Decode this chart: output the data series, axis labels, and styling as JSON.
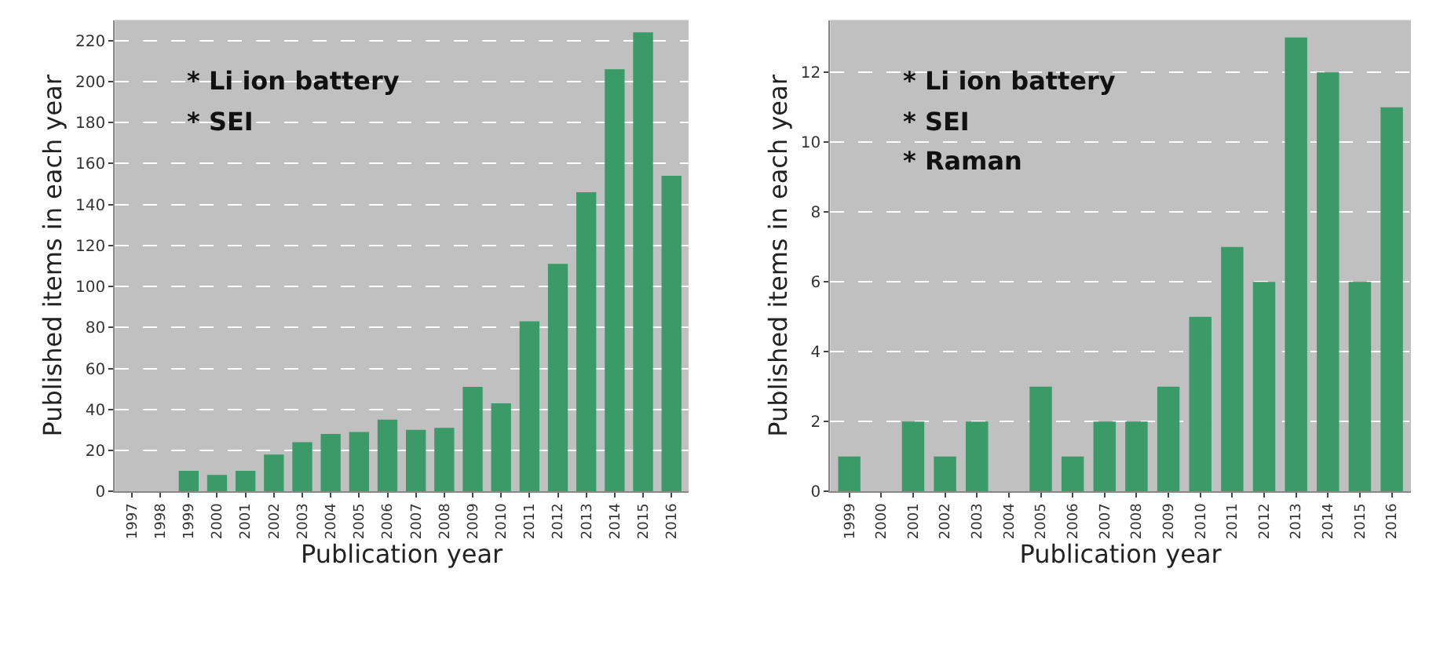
{
  "chart_data": [
    {
      "type": "bar",
      "xlabel": "Publication year",
      "ylabel": "Published items in each year",
      "categories": [
        "1997",
        "1998",
        "1999",
        "2000",
        "2001",
        "2002",
        "2003",
        "2004",
        "2005",
        "2006",
        "2007",
        "2008",
        "2009",
        "2010",
        "2011",
        "2012",
        "2013",
        "2014",
        "2015",
        "2016"
      ],
      "values": [
        0,
        0,
        10,
        8,
        10,
        18,
        24,
        28,
        29,
        35,
        30,
        31,
        51,
        43,
        83,
        111,
        146,
        206,
        224,
        154
      ],
      "color": "#3a9a68",
      "ylim": [
        0,
        230
      ],
      "yticks": [
        0,
        20,
        40,
        60,
        80,
        100,
        120,
        140,
        160,
        180,
        200,
        220
      ],
      "grid": "y",
      "annotations": [
        "* Li ion battery",
        "* SEI"
      ]
    },
    {
      "type": "bar",
      "xlabel": "Publication year",
      "ylabel": "Published items in each year",
      "categories": [
        "1999",
        "2000",
        "2001",
        "2002",
        "2003",
        "2004",
        "2005",
        "2006",
        "2007",
        "2008",
        "2009",
        "2010",
        "2011",
        "2012",
        "2013",
        "2014",
        "2015",
        "2016"
      ],
      "values": [
        1,
        0,
        2,
        1,
        2,
        0,
        3,
        1,
        2,
        2,
        3,
        5,
        7,
        6,
        13,
        12,
        6,
        11
      ],
      "color": "#3a9a68",
      "ylim": [
        0,
        13.5
      ],
      "yticks": [
        0,
        2,
        4,
        6,
        8,
        10,
        12
      ],
      "grid": "y",
      "annotations": [
        "* Li ion battery",
        "* SEI",
        "* Raman"
      ]
    }
  ]
}
